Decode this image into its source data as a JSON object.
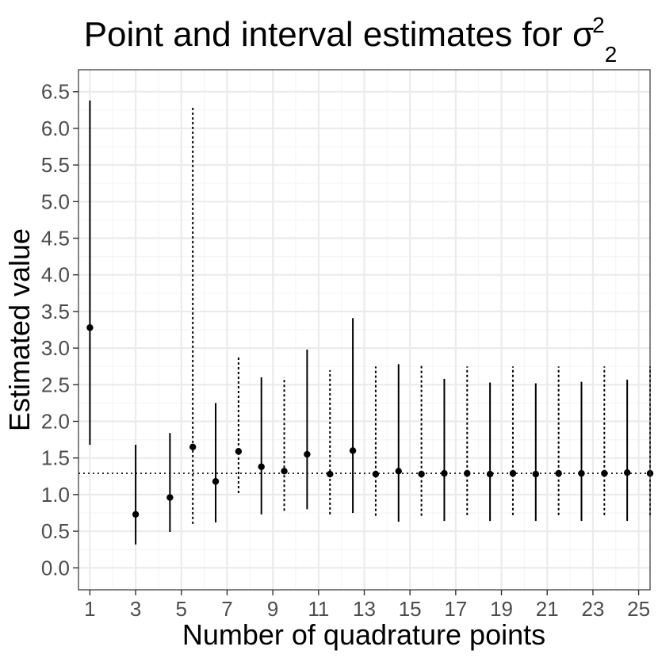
{
  "chart_data": {
    "type": "errorbar",
    "title": {
      "main": "Point and interval estimates for σ",
      "superscript": "2",
      "subscript": "2"
    },
    "xlabel": "Number of quadrature points",
    "ylabel": "Estimated value",
    "xlim": [
      0.5,
      25.5
    ],
    "ylim": [
      -0.3,
      6.8
    ],
    "x_ticks": [
      1,
      3,
      5,
      7,
      9,
      11,
      13,
      15,
      17,
      19,
      21,
      23,
      25
    ],
    "x_tick_labels": [
      "1",
      "3",
      "5",
      "7",
      "9",
      "11",
      "13",
      "15",
      "17",
      "19",
      "21",
      "23",
      "25"
    ],
    "y_ticks": [
      0.0,
      0.5,
      1.0,
      1.5,
      2.0,
      2.5,
      3.0,
      3.5,
      4.0,
      4.5,
      5.0,
      5.5,
      6.0,
      6.5
    ],
    "y_tick_labels": [
      "0.0",
      "0.5",
      "1.0",
      "1.5",
      "2.0",
      "2.5",
      "3.0",
      "3.5",
      "4.0",
      "4.5",
      "5.0",
      "5.5",
      "6.0",
      "6.5"
    ],
    "grid": true,
    "reference_line": {
      "y": 1.29,
      "style": "dotted"
    },
    "series": [
      {
        "style": "solid",
        "points": [
          {
            "x": 1,
            "estimate": 3.28,
            "lower": 1.68,
            "upper": 6.38
          },
          {
            "x": 3,
            "estimate": 0.73,
            "lower": 0.32,
            "upper": 1.68
          },
          {
            "x": 4.5,
            "estimate": 0.96,
            "lower": 0.49,
            "upper": 1.84
          },
          {
            "x": 6.5,
            "estimate": 1.18,
            "lower": 0.62,
            "upper": 2.25
          },
          {
            "x": 8.5,
            "estimate": 1.38,
            "lower": 0.73,
            "upper": 2.6
          },
          {
            "x": 10.5,
            "estimate": 1.55,
            "lower": 0.8,
            "upper": 2.98
          },
          {
            "x": 12.5,
            "estimate": 1.6,
            "lower": 0.75,
            "upper": 3.41
          },
          {
            "x": 14.5,
            "estimate": 1.32,
            "lower": 0.63,
            "upper": 2.78
          },
          {
            "x": 16.5,
            "estimate": 1.29,
            "lower": 0.64,
            "upper": 2.58
          },
          {
            "x": 18.5,
            "estimate": 1.28,
            "lower": 0.64,
            "upper": 2.53
          },
          {
            "x": 20.5,
            "estimate": 1.28,
            "lower": 0.64,
            "upper": 2.52
          },
          {
            "x": 22.5,
            "estimate": 1.29,
            "lower": 0.64,
            "upper": 2.54
          },
          {
            "x": 24.5,
            "estimate": 1.3,
            "lower": 0.64,
            "upper": 2.57
          }
        ]
      },
      {
        "style": "dotted",
        "points": [
          {
            "x": 5.5,
            "estimate": 1.65,
            "lower": 0.6,
            "upper": 6.28
          },
          {
            "x": 7.5,
            "estimate": 1.59,
            "lower": 1.02,
            "upper": 2.9
          },
          {
            "x": 9.5,
            "estimate": 1.32,
            "lower": 0.78,
            "upper": 2.6
          },
          {
            "x": 11.5,
            "estimate": 1.28,
            "lower": 0.73,
            "upper": 2.7
          },
          {
            "x": 13.5,
            "estimate": 1.28,
            "lower": 0.71,
            "upper": 2.75
          },
          {
            "x": 15.5,
            "estimate": 1.28,
            "lower": 0.71,
            "upper": 2.78
          },
          {
            "x": 17.5,
            "estimate": 1.29,
            "lower": 0.72,
            "upper": 2.75
          },
          {
            "x": 19.5,
            "estimate": 1.29,
            "lower": 0.72,
            "upper": 2.75
          },
          {
            "x": 21.5,
            "estimate": 1.29,
            "lower": 0.72,
            "upper": 2.75
          },
          {
            "x": 23.5,
            "estimate": 1.29,
            "lower": 0.72,
            "upper": 2.75
          },
          {
            "x": 25.5,
            "estimate": 1.29,
            "lower": 0.72,
            "upper": 2.75
          }
        ]
      }
    ],
    "colors": {
      "panel_border": "#333333",
      "grid_major": "#ebebeb",
      "grid_minor": "#f5f5f5",
      "marks": "#000000",
      "tick_text": "#4d4d4d"
    }
  }
}
